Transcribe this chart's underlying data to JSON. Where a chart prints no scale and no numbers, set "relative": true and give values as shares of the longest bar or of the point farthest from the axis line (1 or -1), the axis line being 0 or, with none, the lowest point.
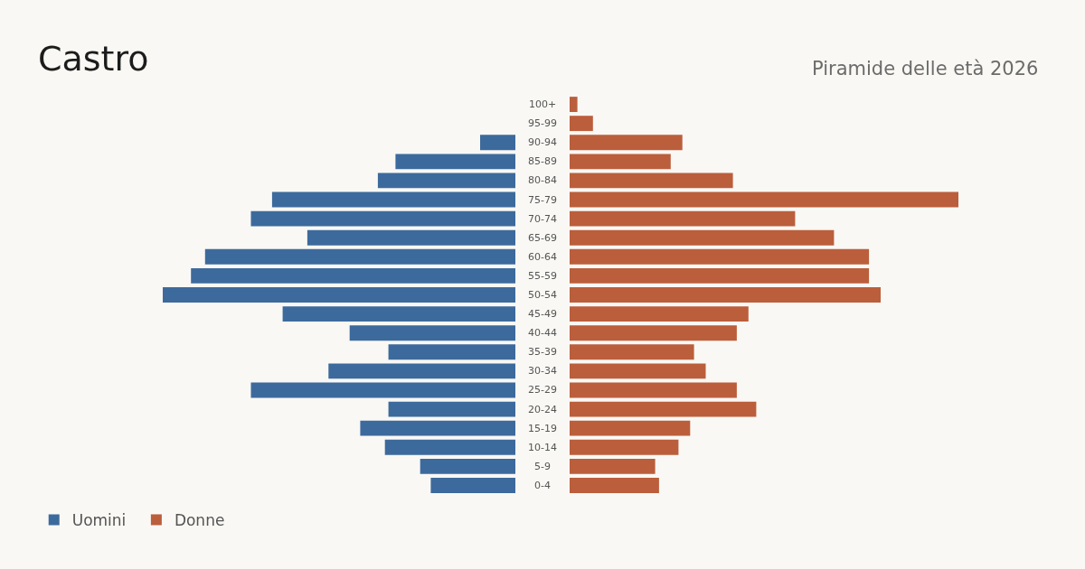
{
  "chart_data": [
    {
      "type": "bar",
      "orientation": "horizontal",
      "relative": true,
      "title": "Castro",
      "categories": [
        "100+",
        "95-99",
        "90-94",
        "85-89",
        "80-84",
        "75-79",
        "70-74",
        "65-69",
        "60-64",
        "55-59",
        "50-54",
        "45-49",
        "40-44",
        "35-39",
        "30-34",
        "25-29",
        "20-24",
        "15-19",
        "10-14",
        "5-9",
        "0-4"
      ],
      "series": [
        {
          "name": "Uomini",
          "color": "#3d6a9c",
          "values": [
            0,
            0,
            -0.1,
            -0.34,
            -0.39,
            -0.69,
            -0.75,
            -0.59,
            -0.88,
            -0.92,
            -1,
            -0.66,
            -0.47,
            -0.36,
            -0.53,
            -0.75,
            -0.36,
            -0.44,
            -0.37,
            -0.27,
            -0.24
          ]
        }
      ],
      "legend": "bottom left"
    },
    {
      "type": "bar",
      "orientation": "horizontal",
      "relative": true,
      "subtitle": "Piramide delle età 2026",
      "categories": [
        null,
        null,
        null,
        null,
        null,
        null,
        null,
        null,
        null,
        null,
        null,
        null,
        null,
        null,
        null,
        null,
        null,
        null,
        null,
        null,
        null
      ],
      "series": [
        {
          "name": "Donne",
          "color": "#bb5e3c",
          "values": [
            0.02,
            0.06,
            0.29,
            0.26,
            0.42,
            1,
            0.58,
            0.68,
            0.77,
            0.77,
            0.8,
            0.46,
            0.43,
            0.32,
            0.35,
            0.43,
            0.48,
            0.31,
            0.28,
            0.22,
            0.23
          ]
        }
      ],
      "legend": "bottom left"
    }
  ]
}
